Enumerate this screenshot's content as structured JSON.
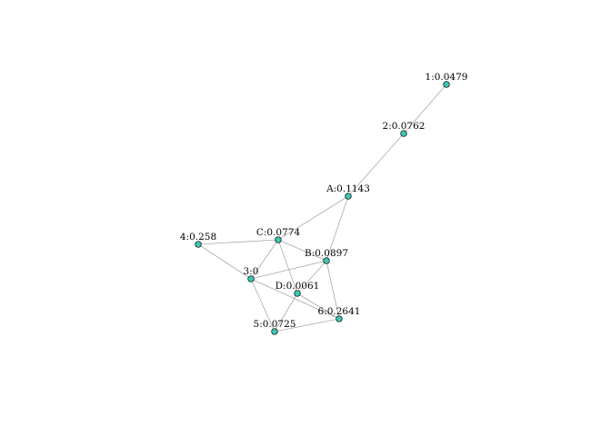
{
  "graph": {
    "node_color": "#3cc8b4",
    "edge_color": "#a9a9a9",
    "nodes": [
      {
        "id": "1",
        "label": "1:0.0479"
      },
      {
        "id": "2",
        "label": "2:0.0762"
      },
      {
        "id": "A",
        "label": "A:0.1143"
      },
      {
        "id": "C",
        "label": "C:0.0774"
      },
      {
        "id": "4",
        "label": "4:0.258"
      },
      {
        "id": "B",
        "label": "B:0.0897"
      },
      {
        "id": "3",
        "label": "3:0"
      },
      {
        "id": "D",
        "label": "D:0.0061"
      },
      {
        "id": "6",
        "label": "6:0.2641"
      },
      {
        "id": "5",
        "label": "5:0.0725"
      }
    ],
    "edges": [
      [
        "1",
        "2"
      ],
      [
        "2",
        "A"
      ],
      [
        "A",
        "C"
      ],
      [
        "A",
        "B"
      ],
      [
        "C",
        "4"
      ],
      [
        "C",
        "3"
      ],
      [
        "C",
        "B"
      ],
      [
        "C",
        "D"
      ],
      [
        "4",
        "3"
      ],
      [
        "3",
        "B"
      ],
      [
        "3",
        "6"
      ],
      [
        "3",
        "5"
      ],
      [
        "B",
        "D"
      ],
      [
        "B",
        "6"
      ],
      [
        "D",
        "5"
      ],
      [
        "D",
        "6"
      ],
      [
        "5",
        "6"
      ]
    ]
  }
}
